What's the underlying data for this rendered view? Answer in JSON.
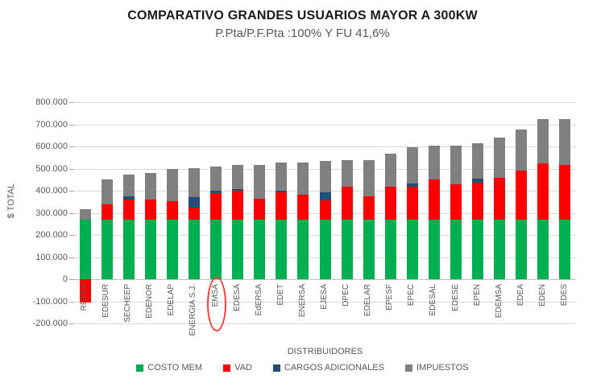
{
  "chart_data": {
    "type": "bar",
    "stacked": true,
    "title": "COMPARATIVO GRANDES USUARIOS MAYOR A 300KW",
    "subtitle": "P.Pta/P.F.Pta :100% Y FU 41,6%",
    "xlabel": "DISTRIBUIDORES",
    "ylabel": "$ TOTAL",
    "ylim": [
      -200000,
      800000
    ],
    "ytick_step": 100000,
    "ytick_labels": [
      "800.000",
      "700.000",
      "600.000",
      "500.000",
      "400.000",
      "300.000",
      "200.000",
      "100.000",
      "0",
      "-100.000",
      "-200.000"
    ],
    "grid": true,
    "legend_position": "bottom",
    "categories": [
      "REFSA",
      "EDESUR",
      "SECHEEP",
      "EDENOR",
      "EDELAP",
      "ENERGIA S.J.",
      "EMSA",
      "EDESA",
      "EdERSA",
      "EDET",
      "ENERSA",
      "EJESA",
      "DPEC",
      "EDELAR",
      "EPESF",
      "EPEC",
      "EDESAL",
      "EDESE",
      "EPEN",
      "EDEMSA",
      "EDEA",
      "EDEN",
      "EDES"
    ],
    "series": [
      {
        "name": "COSTO MEM",
        "color": "#00B050",
        "values": [
          270000,
          270000,
          270000,
          270000,
          270000,
          270000,
          270000,
          270000,
          270000,
          270000,
          270000,
          270000,
          270000,
          270000,
          270000,
          270000,
          270000,
          270000,
          270000,
          270000,
          270000,
          270000,
          270000
        ]
      },
      {
        "name": "VAD",
        "color": "#FF0000",
        "values": [
          -105000,
          67000,
          91000,
          90000,
          83000,
          53000,
          118000,
          130000,
          94000,
          122000,
          113000,
          88000,
          149000,
          106000,
          147000,
          147000,
          182000,
          158000,
          165000,
          189000,
          220000,
          252000,
          246000
        ]
      },
      {
        "name": "CARGOS ADICIONALES",
        "color": "#1F4E79",
        "values": [
          0,
          0,
          15000,
          0,
          0,
          48000,
          12000,
          8000,
          0,
          8000,
          0,
          35000,
          0,
          0,
          0,
          17000,
          0,
          0,
          20000,
          0,
          0,
          0,
          0
        ]
      },
      {
        "name": "IMPUESTOS",
        "color": "#808080",
        "values": [
          48000,
          113000,
          98000,
          121000,
          144000,
          130000,
          108000,
          107000,
          151000,
          126000,
          146000,
          143000,
          118000,
          161000,
          151000,
          161000,
          153000,
          177000,
          161000,
          182000,
          188000,
          203000,
          206000
        ]
      }
    ],
    "annotation": {
      "type": "ellipse",
      "color": "#fe3b3b",
      "category": "EMSA",
      "target": "x-axis-label"
    },
    "colors": {
      "gridline": "#d9d9d9",
      "zero_line": "#bfbfbf",
      "axis_text": "#595959",
      "title_text": "#1a1a1a"
    }
  }
}
